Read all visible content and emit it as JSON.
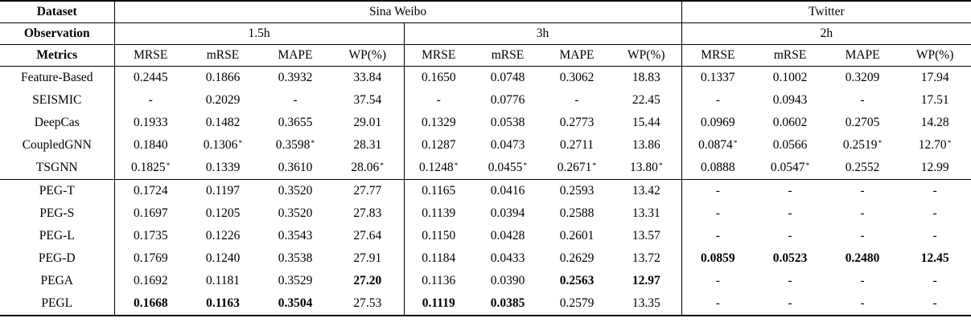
{
  "page": {
    "background": "#ffffff",
    "text_color": "#000000"
  },
  "table": {
    "header": {
      "dataset_label": "Dataset",
      "observation_label": "Observation",
      "metrics_label": "Metrics",
      "datasets": [
        {
          "name": "Sina Weibo",
          "colspan": 8
        },
        {
          "name": "Twitter",
          "colspan": 4
        }
      ],
      "observations": [
        {
          "name": "1.5h",
          "colspan": 4
        },
        {
          "name": "3h",
          "colspan": 4
        },
        {
          "name": "2h",
          "colspan": 4
        }
      ],
      "metric_groups": [
        [
          "MRSE",
          "mRSE",
          "MAPE",
          "WP(%)"
        ],
        [
          "MRSE",
          "mRSE",
          "MAPE",
          "WP(%)"
        ],
        [
          "MRSE",
          "mRSE",
          "MAPE",
          "WP(%)"
        ]
      ]
    },
    "groups": [
      {
        "rows": [
          {
            "method": "Feature-Based",
            "cells": [
              {
                "v": "0.2445"
              },
              {
                "v": "0.1866"
              },
              {
                "v": "0.3932"
              },
              {
                "v": "33.84"
              },
              {
                "v": "0.1650"
              },
              {
                "v": "0.0748"
              },
              {
                "v": "0.3062"
              },
              {
                "v": "18.83"
              },
              {
                "v": "0.1337"
              },
              {
                "v": "0.1002"
              },
              {
                "v": "0.3209"
              },
              {
                "v": "17.94"
              }
            ]
          },
          {
            "method": "SEISMIC",
            "cells": [
              {
                "v": "-"
              },
              {
                "v": "0.2029"
              },
              {
                "v": "-"
              },
              {
                "v": "37.54"
              },
              {
                "v": "-"
              },
              {
                "v": "0.0776"
              },
              {
                "v": "-"
              },
              {
                "v": "22.45"
              },
              {
                "v": "-"
              },
              {
                "v": "0.0943"
              },
              {
                "v": "-"
              },
              {
                "v": "17.51"
              }
            ]
          },
          {
            "method": "DeepCas",
            "cells": [
              {
                "v": "0.1933"
              },
              {
                "v": "0.1482"
              },
              {
                "v": "0.3655"
              },
              {
                "v": "29.01"
              },
              {
                "v": "0.1329"
              },
              {
                "v": "0.0538"
              },
              {
                "v": "0.2773"
              },
              {
                "v": "15.44"
              },
              {
                "v": "0.0969"
              },
              {
                "v": "0.0602"
              },
              {
                "v": "0.2705"
              },
              {
                "v": "14.28"
              }
            ]
          },
          {
            "method": "CoupledGNN",
            "cells": [
              {
                "v": "0.1840"
              },
              {
                "v": "0.1306",
                "star": true
              },
              {
                "v": "0.3598",
                "star": true
              },
              {
                "v": "28.31"
              },
              {
                "v": "0.1287"
              },
              {
                "v": "0.0473"
              },
              {
                "v": "0.2711"
              },
              {
                "v": "13.86"
              },
              {
                "v": "0.0874",
                "star": true
              },
              {
                "v": "0.0566"
              },
              {
                "v": "0.2519",
                "star": true
              },
              {
                "v": "12.70",
                "star": true
              }
            ]
          },
          {
            "method": "TSGNN",
            "cells": [
              {
                "v": "0.1825",
                "star": true
              },
              {
                "v": "0.1339"
              },
              {
                "v": "0.3610"
              },
              {
                "v": "28.06",
                "star": true
              },
              {
                "v": "0.1248",
                "star": true
              },
              {
                "v": "0.0455",
                "star": true
              },
              {
                "v": "0.2671",
                "star": true
              },
              {
                "v": "13.80",
                "star": true
              },
              {
                "v": "0.0888"
              },
              {
                "v": "0.0547",
                "star": true
              },
              {
                "v": "0.2552"
              },
              {
                "v": "12.99"
              }
            ]
          }
        ]
      },
      {
        "rows": [
          {
            "method": "PEG-T",
            "cells": [
              {
                "v": "0.1724"
              },
              {
                "v": "0.1197"
              },
              {
                "v": "0.3520"
              },
              {
                "v": "27.77"
              },
              {
                "v": "0.1165"
              },
              {
                "v": "0.0416"
              },
              {
                "v": "0.2593"
              },
              {
                "v": "13.42"
              },
              {
                "v": "-"
              },
              {
                "v": "-"
              },
              {
                "v": "-"
              },
              {
                "v": "-"
              }
            ]
          },
          {
            "method": "PEG-S",
            "cells": [
              {
                "v": "0.1697"
              },
              {
                "v": "0.1205"
              },
              {
                "v": "0.3520"
              },
              {
                "v": "27.83"
              },
              {
                "v": "0.1139"
              },
              {
                "v": "0.0394"
              },
              {
                "v": "0.2588"
              },
              {
                "v": "13.31"
              },
              {
                "v": "-"
              },
              {
                "v": "-"
              },
              {
                "v": "-"
              },
              {
                "v": "-"
              }
            ]
          },
          {
            "method": "PEG-L",
            "cells": [
              {
                "v": "0.1735"
              },
              {
                "v": "0.1226"
              },
              {
                "v": "0.3543"
              },
              {
                "v": "27.64"
              },
              {
                "v": "0.1150"
              },
              {
                "v": "0.0428"
              },
              {
                "v": "0.2601"
              },
              {
                "v": "13.57"
              },
              {
                "v": "-"
              },
              {
                "v": "-"
              },
              {
                "v": "-"
              },
              {
                "v": "-"
              }
            ]
          },
          {
            "method": "PEG-D",
            "cells": [
              {
                "v": "0.1769"
              },
              {
                "v": "0.1240"
              },
              {
                "v": "0.3538"
              },
              {
                "v": "27.91"
              },
              {
                "v": "0.1184"
              },
              {
                "v": "0.0433"
              },
              {
                "v": "0.2629"
              },
              {
                "v": "13.72"
              },
              {
                "v": "0.0859",
                "bold": true
              },
              {
                "v": "0.0523",
                "bold": true
              },
              {
                "v": "0.2480",
                "bold": true
              },
              {
                "v": "12.45",
                "bold": true
              }
            ]
          },
          {
            "method": "PEGA",
            "cells": [
              {
                "v": "0.1692"
              },
              {
                "v": "0.1181"
              },
              {
                "v": "0.3529"
              },
              {
                "v": "27.20",
                "bold": true
              },
              {
                "v": "0.1136"
              },
              {
                "v": "0.0390"
              },
              {
                "v": "0.2563",
                "bold": true
              },
              {
                "v": "12.97",
                "bold": true
              },
              {
                "v": "-"
              },
              {
                "v": "-"
              },
              {
                "v": "-"
              },
              {
                "v": "-"
              }
            ]
          },
          {
            "method": "PEGL",
            "cells": [
              {
                "v": "0.1668",
                "bold": true
              },
              {
                "v": "0.1163",
                "bold": true
              },
              {
                "v": "0.3504",
                "bold": true
              },
              {
                "v": "27.53"
              },
              {
                "v": "0.1119",
                "bold": true
              },
              {
                "v": "0.0385",
                "bold": true
              },
              {
                "v": "0.2579"
              },
              {
                "v": "13.35"
              },
              {
                "v": "-"
              },
              {
                "v": "-"
              },
              {
                "v": "-"
              },
              {
                "v": "-"
              }
            ]
          }
        ]
      }
    ]
  }
}
